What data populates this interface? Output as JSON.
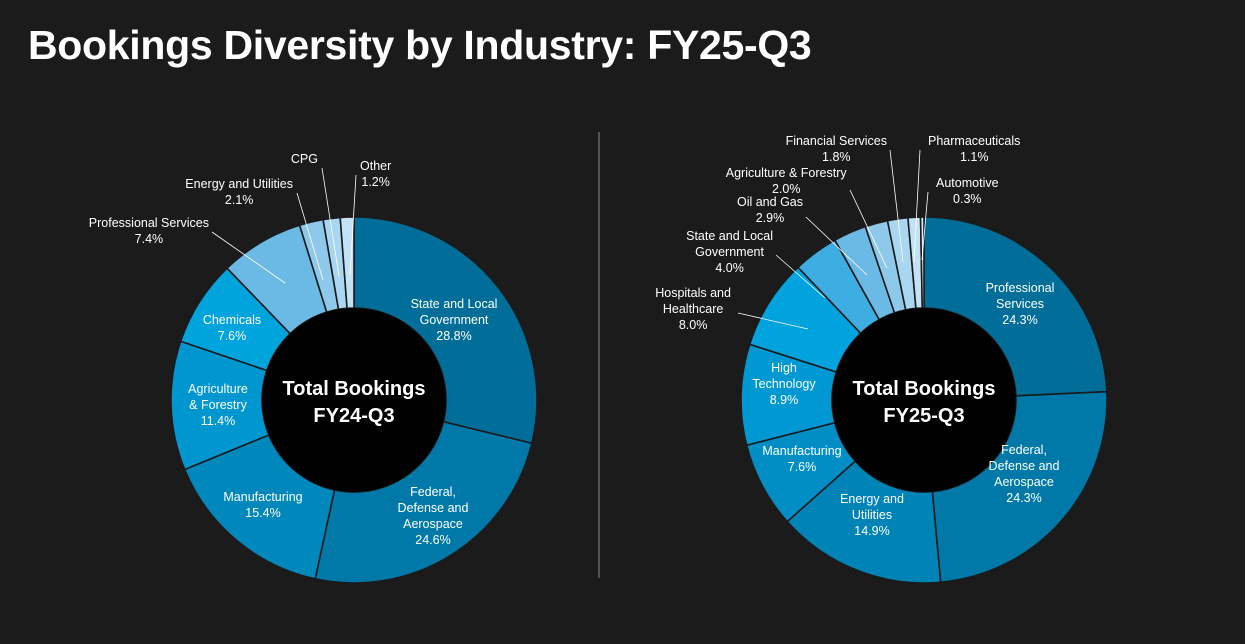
{
  "title": "Bookings Diversity by Industry: FY25-Q3",
  "chart_data": [
    {
      "type": "pie",
      "variant": "donut",
      "center_label": [
        "Total Bookings",
        "FY24-Q3"
      ],
      "slices": [
        {
          "label": [
            "State and Local",
            "Government"
          ],
          "value": 28.8,
          "value_text": "28.8%",
          "color": "#006e99"
        },
        {
          "label": [
            "Federal,",
            "Defense and",
            "Aerospace"
          ],
          "value": 24.6,
          "value_text": "24.6%",
          "color": "#0079a8"
        },
        {
          "label": [
            "Manufacturing"
          ],
          "value": 15.4,
          "value_text": "15.4%",
          "color": "#0087bc"
        },
        {
          "label": [
            "Agriculture",
            "& Forestry"
          ],
          "value": 11.4,
          "value_text": "11.4%",
          "color": "#0096d0"
        },
        {
          "label": [
            "Chemicals"
          ],
          "value": 7.6,
          "value_text": "7.6%",
          "color": "#00a4dd"
        },
        {
          "label": [
            "Professional Services"
          ],
          "value": 7.4,
          "value_text": "7.4%",
          "color": "#6bb9e5"
        },
        {
          "label": [
            "Energy and Utilities"
          ],
          "value": 2.1,
          "value_text": "2.1%",
          "color": "#8ec9ec"
        },
        {
          "label": [
            "CPG"
          ],
          "value": 1.5,
          "value_text": "",
          "color": "#a9d6f1"
        },
        {
          "label": [
            "Other"
          ],
          "value": 1.2,
          "value_text": "1.2%",
          "color": "#c3e2f5"
        }
      ]
    },
    {
      "type": "pie",
      "variant": "donut",
      "center_label": [
        "Total Bookings",
        "FY25-Q3"
      ],
      "slices": [
        {
          "label": [
            "Professional",
            "Services"
          ],
          "value": 24.3,
          "value_text": "24.3%",
          "color": "#006e99"
        },
        {
          "label": [
            "Federal,",
            "Defense and",
            "Aerospace"
          ],
          "value": 24.3,
          "value_text": "24.3%",
          "color": "#0079a8"
        },
        {
          "label": [
            "Energy and",
            "Utilities"
          ],
          "value": 14.9,
          "value_text": "14.9%",
          "color": "#0083b6"
        },
        {
          "label": [
            "Manufacturing"
          ],
          "value": 7.6,
          "value_text": "7.6%",
          "color": "#008ec4"
        },
        {
          "label": [
            "High",
            "Technology"
          ],
          "value": 8.9,
          "value_text": "8.9%",
          "color": "#0098d2"
        },
        {
          "label": [
            "Hospitals and",
            "Healthcare"
          ],
          "value": 8.0,
          "value_text": "8.0%",
          "color": "#00a3dd"
        },
        {
          "label": [
            "State and Local",
            "Government"
          ],
          "value": 4.0,
          "value_text": "4.0%",
          "color": "#3eaee2"
        },
        {
          "label": [
            "Oil and Gas"
          ],
          "value": 2.9,
          "value_text": "2.9%",
          "color": "#6bb9e5"
        },
        {
          "label": [
            "Agriculture & Forestry"
          ],
          "value": 2.0,
          "value_text": "2.0%",
          "color": "#8ec9ec"
        },
        {
          "label": [
            "Financial Services"
          ],
          "value": 1.8,
          "value_text": "1.8%",
          "color": "#a9d6f1"
        },
        {
          "label": [
            "Pharmaceuticals"
          ],
          "value": 1.1,
          "value_text": "1.1%",
          "color": "#c3e2f5"
        },
        {
          "label": [
            "Automotive"
          ],
          "value": 0.3,
          "value_text": "0.3%",
          "color": "#d6ecf9"
        }
      ]
    }
  ]
}
